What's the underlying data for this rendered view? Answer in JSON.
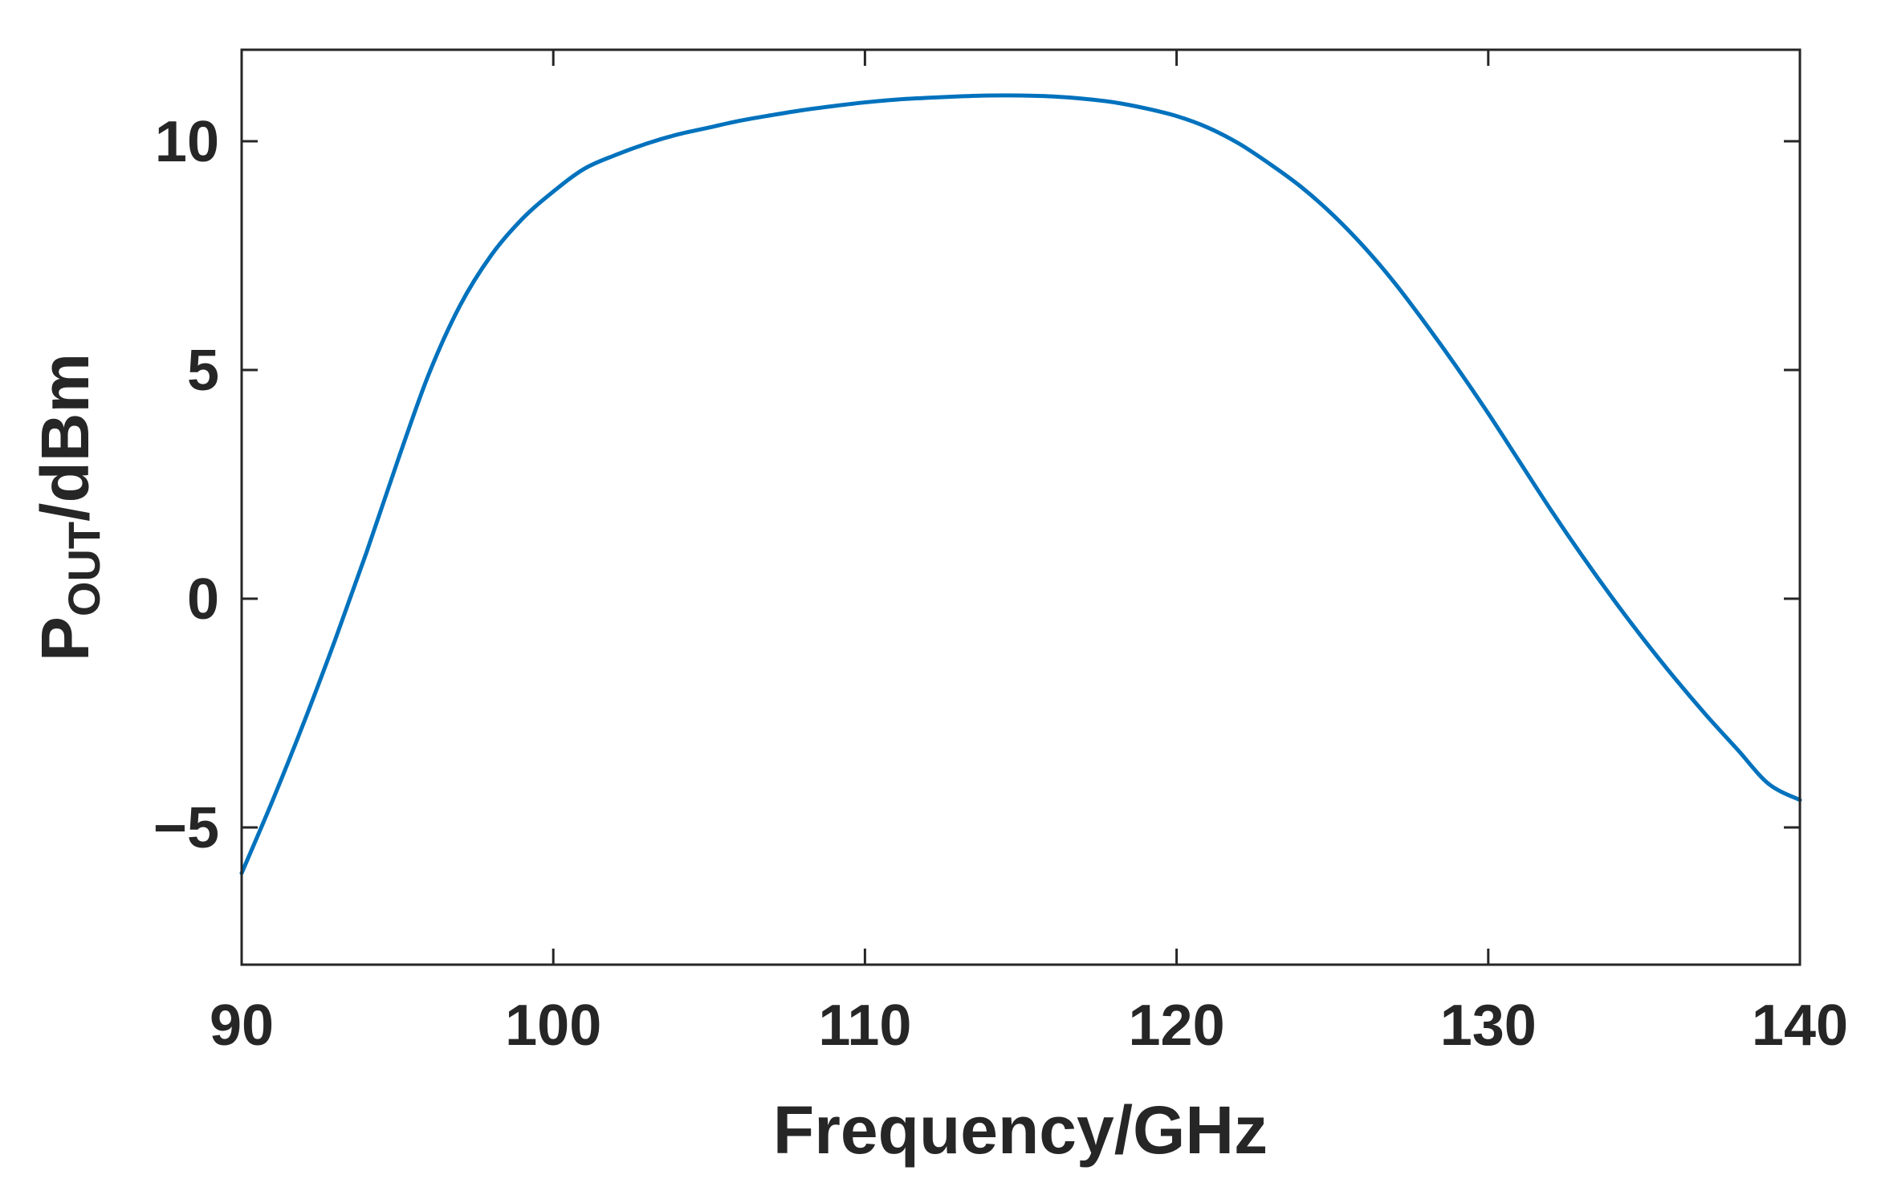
{
  "chart_data": {
    "type": "line",
    "xlabel": "Frequency/GHz",
    "ylabel": {
      "main": "P",
      "subscript": "OUT",
      "suffix": "/dBm"
    },
    "xlim": [
      90,
      140
    ],
    "ylim": [
      -8,
      12
    ],
    "xticks": [
      90,
      100,
      110,
      120,
      130,
      140
    ],
    "yticks": [
      -5,
      0,
      5,
      10
    ],
    "xtick_labels": [
      "90",
      "100",
      "110",
      "120",
      "130",
      "140"
    ],
    "ytick_labels": [
      "−5",
      "0",
      "5",
      "10"
    ],
    "grid": false,
    "box": true,
    "series": [
      {
        "color": "#0072BD",
        "x": [
          90,
          91,
          92,
          93,
          94,
          95,
          96,
          97,
          98,
          99,
          100,
          101,
          102,
          103,
          104,
          105,
          106,
          107,
          108,
          109,
          110,
          111,
          112,
          113,
          114,
          115,
          116,
          117,
          118,
          119,
          120,
          121,
          122,
          123,
          124,
          125,
          126,
          127,
          128,
          129,
          130,
          131,
          132,
          133,
          134,
          135,
          136,
          137,
          138,
          139,
          140
        ],
        "y": [
          -6.0,
          -4.4,
          -2.7,
          -0.9,
          1.0,
          3.0,
          4.9,
          6.4,
          7.5,
          8.3,
          8.9,
          9.4,
          9.7,
          9.95,
          10.15,
          10.3,
          10.45,
          10.57,
          10.68,
          10.77,
          10.85,
          10.91,
          10.95,
          10.98,
          11.0,
          11.0,
          10.98,
          10.93,
          10.85,
          10.72,
          10.55,
          10.3,
          9.95,
          9.5,
          9.0,
          8.4,
          7.7,
          6.9,
          6.0,
          5.05,
          4.05,
          3.0,
          1.95,
          0.95,
          0.0,
          -0.9,
          -1.75,
          -2.55,
          -3.3,
          -4.05,
          -4.4
        ]
      }
    ]
  }
}
